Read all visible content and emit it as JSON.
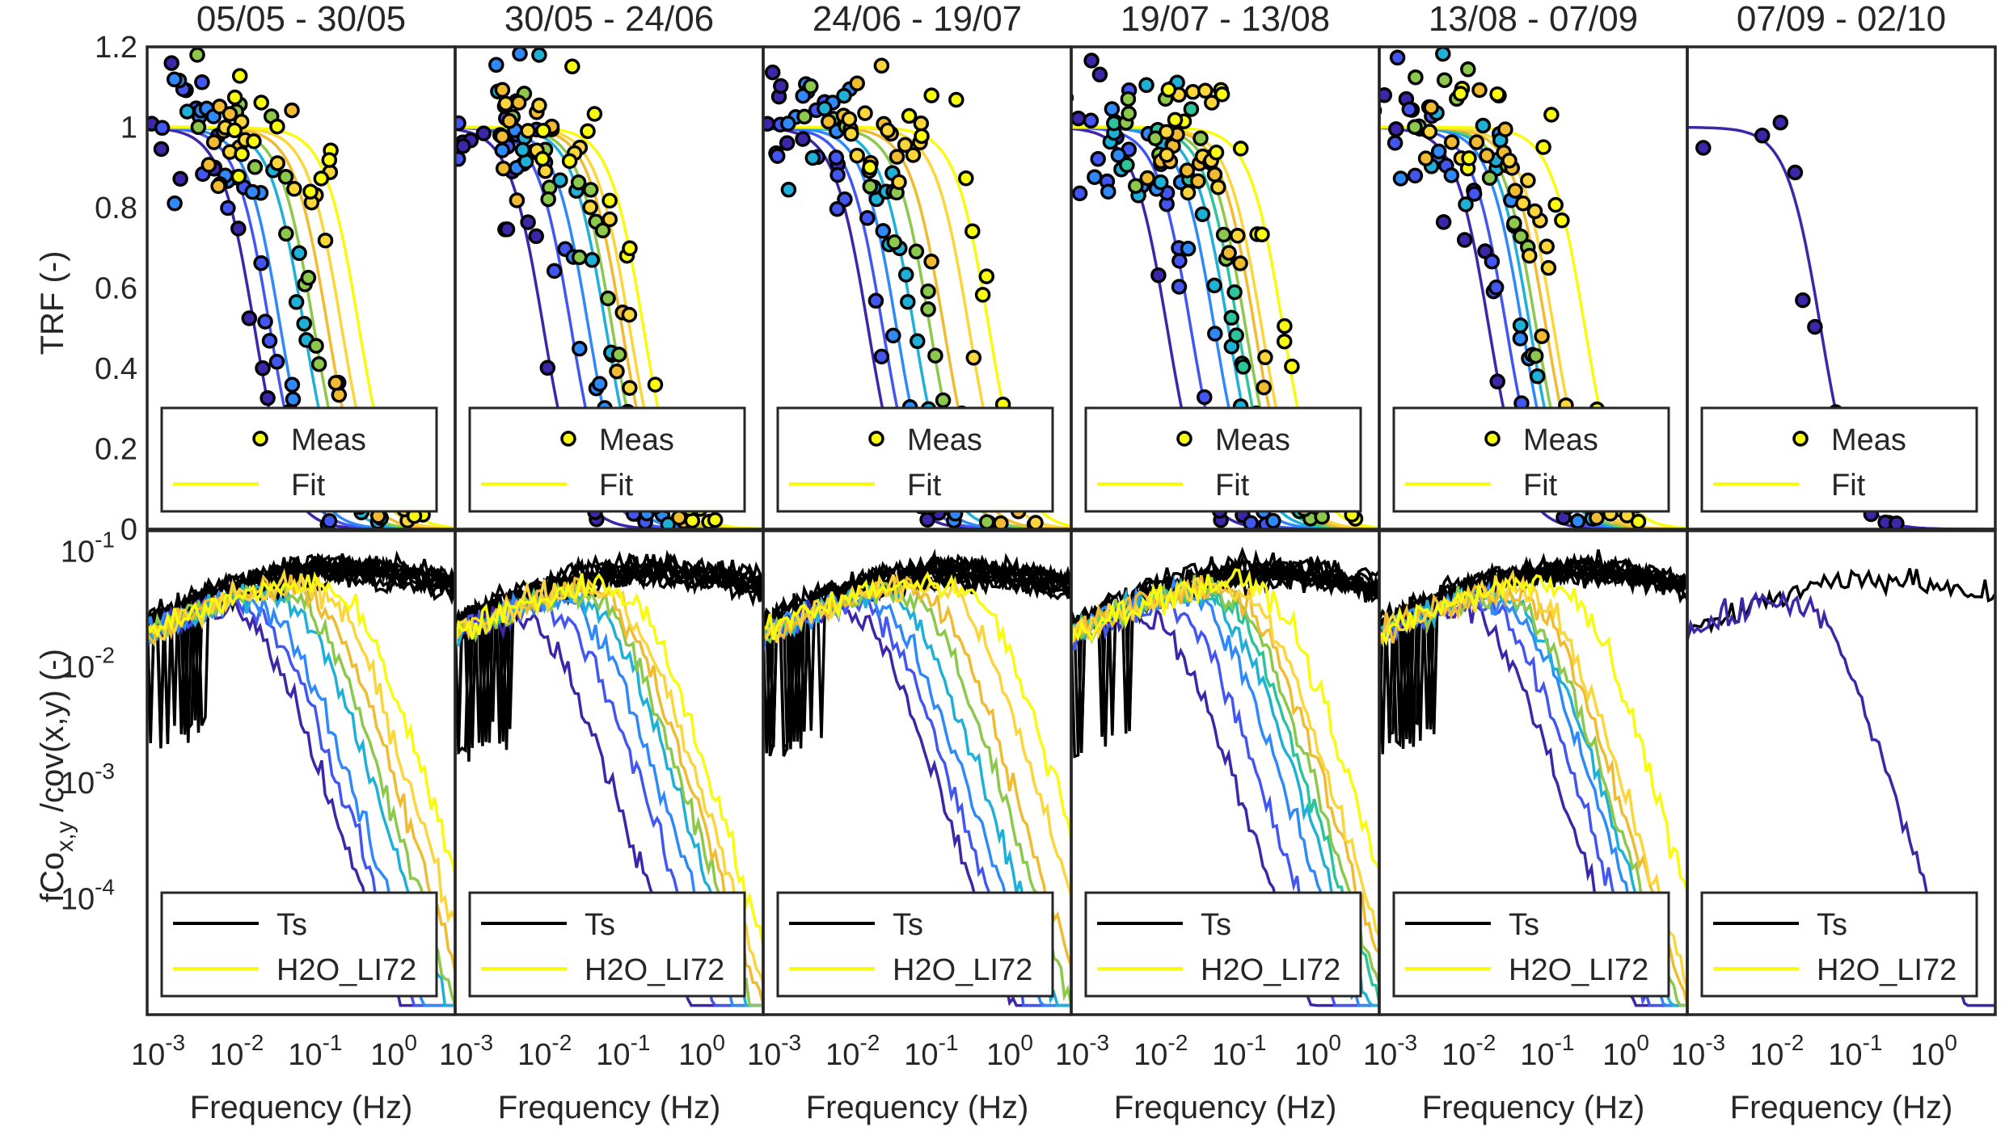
{
  "chart_data": {
    "type": "scatter",
    "layout": "2 rows x 6 columns of subplots sharing x axis",
    "colormap": [
      "#3e26a8",
      "#4356f0",
      "#2f89f8",
      "#1fb0d7",
      "#2ec49b",
      "#8cc84b",
      "#f0bb31",
      "#fbd63a",
      "#f9fb0e"
    ],
    "frame_color": "#262626",
    "panels": [
      {
        "title": "05/05 - 30/05"
      },
      {
        "title": "30/05 - 24/06"
      },
      {
        "title": "24/06 - 19/07"
      },
      {
        "title": "19/07 - 13/08"
      },
      {
        "title": "13/08 - 07/09"
      },
      {
        "title": "07/09 - 02/10"
      }
    ],
    "top_row": {
      "ylabel": "TRF (-)",
      "ylim": [
        0,
        1.2
      ],
      "yticks": [
        "0",
        "0.2",
        "0.4",
        "0.6",
        "0.8",
        "1",
        "1.2"
      ],
      "legend": {
        "marker_label": "Meas",
        "line_label": "Fit",
        "placement": "bottom-center"
      },
      "fit_cutoffs_hz": [
        [
          0.014,
          0.022,
          0.03,
          0.06,
          0.08,
          0.12,
          0.18,
          0.3
        ],
        [
          0.008,
          0.018,
          0.03,
          0.05,
          0.06,
          0.08,
          0.1,
          0.15
        ],
        [
          0.013,
          0.02,
          0.03,
          0.05,
          0.08,
          0.12,
          0.25,
          0.45
        ],
        [
          0.01,
          0.02,
          0.04,
          0.06,
          0.08,
          0.1,
          0.13,
          0.16,
          0.3
        ],
        [
          0.015,
          0.025,
          0.04,
          0.05,
          0.06,
          0.08,
          0.1,
          0.25
        ],
        [
          0.03
        ]
      ]
    },
    "bottom_row": {
      "ylabel": "fCo_x,y /cov(x,y) (-)",
      "yscale": "log",
      "ylim": [
        1e-05,
        0.15
      ],
      "yticks": [
        {
          "base": "10",
          "exp": "-1",
          "value": 0.1
        },
        {
          "base": "10",
          "exp": "-2",
          "value": 0.01
        },
        {
          "base": "10",
          "exp": "-3",
          "value": 0.001
        },
        {
          "base": "10",
          "exp": "-4",
          "value": 0.0001
        }
      ],
      "legend": {
        "series": [
          "Ts",
          "H2O_LI72"
        ],
        "placement": "bottom-center"
      }
    },
    "x_axis": {
      "label": "Frequency (Hz)",
      "scale": "log",
      "xlim": [
        0.0006,
        5
      ],
      "ticks": [
        {
          "base": "10",
          "exp": "-3",
          "value": 0.001
        },
        {
          "base": "10",
          "exp": "-2",
          "value": 0.01
        },
        {
          "base": "10",
          "exp": "-1",
          "value": 0.1
        },
        {
          "base": "10",
          "exp": "0",
          "value": 1
        }
      ]
    }
  }
}
